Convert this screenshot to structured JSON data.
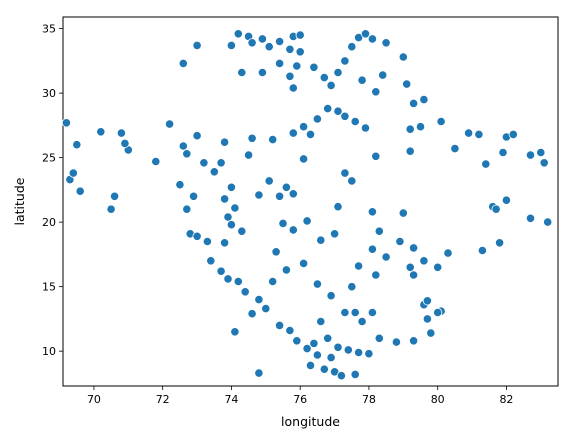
{
  "chart_data": {
    "type": "scatter",
    "xlabel": "longitude",
    "ylabel": "latitude",
    "xlim": [
      69.1,
      83.5
    ],
    "ylim": [
      7.3,
      35.9
    ],
    "xticks": [
      "70",
      "72",
      "74",
      "76",
      "78",
      "80",
      "82"
    ],
    "yticks": [
      "10",
      "15",
      "20",
      "25",
      "30",
      "35"
    ],
    "marker_color": "#1f77b4",
    "marker_edge": "#ffffff",
    "grid": false,
    "points": [
      [
        74.2,
        34.6
      ],
      [
        74.5,
        34.4
      ],
      [
        74.9,
        34.2
      ],
      [
        75.4,
        34.0
      ],
      [
        74.0,
        33.7
      ],
      [
        74.6,
        33.9
      ],
      [
        75.1,
        33.6
      ],
      [
        75.8,
        34.4
      ],
      [
        76.0,
        34.5
      ],
      [
        75.7,
        33.4
      ],
      [
        76.0,
        33.2
      ],
      [
        73.0,
        33.7
      ],
      [
        72.6,
        32.3
      ],
      [
        74.3,
        31.6
      ],
      [
        74.9,
        31.6
      ],
      [
        75.4,
        32.3
      ],
      [
        75.9,
        32.1
      ],
      [
        75.7,
        31.3
      ],
      [
        75.8,
        30.4
      ],
      [
        76.4,
        32.0
      ],
      [
        76.7,
        31.2
      ],
      [
        77.1,
        31.6
      ],
      [
        77.3,
        32.5
      ],
      [
        76.9,
        30.6
      ],
      [
        77.7,
        34.3
      ],
      [
        77.9,
        34.6
      ],
      [
        78.1,
        34.2
      ],
      [
        78.5,
        33.9
      ],
      [
        77.5,
        33.6
      ],
      [
        77.8,
        31.0
      ],
      [
        78.2,
        30.1
      ],
      [
        78.4,
        31.4
      ],
      [
        79.0,
        32.8
      ],
      [
        79.1,
        30.7
      ],
      [
        79.3,
        29.2
      ],
      [
        79.6,
        29.5
      ],
      [
        76.8,
        28.8
      ],
      [
        77.1,
        28.6
      ],
      [
        77.3,
        28.2
      ],
      [
        77.6,
        27.8
      ],
      [
        77.9,
        27.3
      ],
      [
        76.5,
        28.0
      ],
      [
        75.8,
        26.9
      ],
      [
        76.3,
        26.8
      ],
      [
        76.1,
        27.4
      ],
      [
        75.2,
        26.4
      ],
      [
        74.6,
        26.5
      ],
      [
        73.8,
        26.2
      ],
      [
        73.0,
        26.7
      ],
      [
        72.7,
        25.3
      ],
      [
        72.5,
        22.9
      ],
      [
        72.9,
        22.0
      ],
      [
        73.2,
        24.6
      ],
      [
        73.7,
        24.6
      ],
      [
        74.5,
        25.2
      ],
      [
        73.5,
        23.9
      ],
      [
        74.0,
        22.7
      ],
      [
        73.8,
        21.8
      ],
      [
        74.1,
        21.1
      ],
      [
        72.7,
        21.0
      ],
      [
        72.8,
        19.1
      ],
      [
        73.0,
        18.9
      ],
      [
        73.3,
        18.5
      ],
      [
        73.8,
        18.4
      ],
      [
        74.0,
        19.8
      ],
      [
        73.9,
        20.4
      ],
      [
        74.3,
        19.3
      ],
      [
        73.4,
        17.0
      ],
      [
        73.7,
        16.2
      ],
      [
        73.9,
        15.6
      ],
      [
        74.2,
        15.4
      ],
      [
        74.4,
        14.6
      ],
      [
        74.8,
        14.0
      ],
      [
        74.6,
        12.9
      ],
      [
        75.0,
        13.3
      ],
      [
        75.4,
        12.0
      ],
      [
        75.7,
        11.6
      ],
      [
        74.1,
        11.5
      ],
      [
        74.8,
        8.3
      ],
      [
        75.9,
        10.8
      ],
      [
        76.2,
        10.2
      ],
      [
        76.5,
        9.7
      ],
      [
        76.9,
        9.5
      ],
      [
        76.3,
        8.9
      ],
      [
        76.7,
        8.6
      ],
      [
        77.0,
        8.4
      ],
      [
        77.2,
        8.1
      ],
      [
        77.6,
        8.2
      ],
      [
        76.4,
        10.6
      ],
      [
        76.8,
        11.0
      ],
      [
        77.1,
        10.3
      ],
      [
        77.4,
        10.1
      ],
      [
        76.6,
        12.3
      ],
      [
        77.3,
        13.0
      ],
      [
        77.6,
        13.0
      ],
      [
        78.1,
        13.0
      ],
      [
        77.8,
        12.3
      ],
      [
        78.3,
        11.0
      ],
      [
        77.7,
        9.9
      ],
      [
        78.0,
        9.8
      ],
      [
        78.8,
        10.7
      ],
      [
        79.3,
        10.8
      ],
      [
        79.8,
        11.4
      ],
      [
        79.7,
        12.5
      ],
      [
        80.1,
        13.1
      ],
      [
        79.6,
        13.6
      ],
      [
        77.5,
        15.0
      ],
      [
        78.2,
        15.9
      ],
      [
        78.5,
        17.3
      ],
      [
        78.1,
        17.9
      ],
      [
        78.9,
        18.5
      ],
      [
        79.3,
        18.0
      ],
      [
        79.6,
        17.0
      ],
      [
        79.2,
        16.5
      ],
      [
        78.3,
        19.3
      ],
      [
        78.1,
        20.8
      ],
      [
        77.1,
        21.2
      ],
      [
        76.2,
        20.1
      ],
      [
        75.8,
        19.4
      ],
      [
        75.5,
        19.9
      ],
      [
        76.1,
        16.8
      ],
      [
        76.5,
        15.2
      ],
      [
        76.9,
        14.3
      ],
      [
        75.2,
        15.4
      ],
      [
        75.6,
        16.3
      ],
      [
        75.3,
        17.7
      ],
      [
        76.6,
        18.6
      ],
      [
        77.0,
        19.1
      ],
      [
        77.7,
        16.6
      ],
      [
        75.6,
        22.7
      ],
      [
        75.8,
        22.2
      ],
      [
        75.4,
        22.0
      ],
      [
        74.8,
        22.1
      ],
      [
        75.1,
        23.2
      ],
      [
        76.1,
        24.9
      ],
      [
        77.3,
        23.8
      ],
      [
        77.5,
        23.2
      ],
      [
        78.2,
        25.1
      ],
      [
        79.2,
        27.2
      ],
      [
        79.5,
        27.4
      ],
      [
        80.1,
        27.8
      ],
      [
        80.9,
        26.9
      ],
      [
        81.2,
        26.8
      ],
      [
        80.5,
        25.7
      ],
      [
        81.4,
        24.5
      ],
      [
        81.9,
        25.4
      ],
      [
        82.0,
        26.6
      ],
      [
        82.2,
        26.8
      ],
      [
        83.0,
        25.4
      ],
      [
        83.1,
        24.6
      ],
      [
        82.7,
        25.2
      ],
      [
        81.6,
        21.2
      ],
      [
        81.7,
        21.0
      ],
      [
        82.0,
        21.7
      ],
      [
        81.8,
        18.4
      ],
      [
        81.3,
        17.8
      ],
      [
        82.7,
        20.3
      ],
      [
        83.2,
        20.0
      ],
      [
        80.0,
        16.5
      ],
      [
        80.3,
        17.6
      ],
      [
        79.3,
        15.9
      ],
      [
        79.7,
        13.9
      ],
      [
        70.2,
        27.0
      ],
      [
        70.8,
        26.9
      ],
      [
        71.0,
        25.6
      ],
      [
        70.9,
        26.1
      ],
      [
        70.6,
        22.0
      ],
      [
        70.5,
        21.0
      ],
      [
        69.6,
        22.4
      ],
      [
        69.3,
        23.3
      ],
      [
        69.4,
        23.8
      ],
      [
        69.5,
        26.0
      ],
      [
        69.2,
        27.7
      ],
      [
        71.8,
        24.7
      ],
      [
        72.2,
        27.6
      ],
      [
        72.6,
        25.9
      ],
      [
        79.2,
        25.5
      ],
      [
        79.0,
        20.7
      ],
      [
        80.0,
        13.0
      ]
    ]
  }
}
